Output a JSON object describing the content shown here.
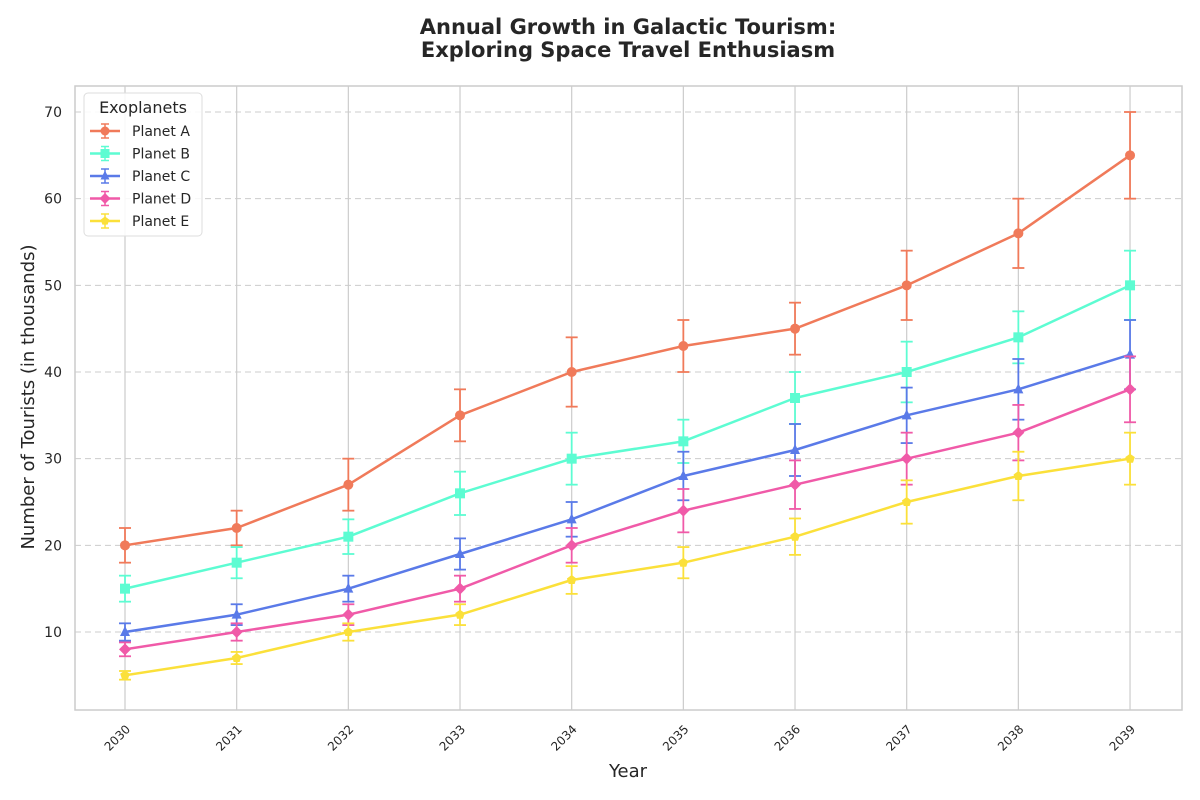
{
  "chart_data": {
    "type": "line",
    "title_lines": [
      "Annual Growth in Galactic Tourism:",
      "Exploring Space Travel Enthusiasm"
    ],
    "xlabel": "Year",
    "ylabel": "Number of Tourists (in thousands)",
    "x": [
      "2030",
      "2031",
      "2032",
      "2033",
      "2034",
      "2035",
      "2036",
      "2037",
      "2038",
      "2039"
    ],
    "ylim": [
      1,
      73
    ],
    "yticks": [
      "10",
      "20",
      "30",
      "40",
      "50",
      "60",
      "70"
    ],
    "grid": true,
    "legend": {
      "title": "Exoplanets",
      "position": "top-left"
    },
    "series": [
      {
        "name": "Planet A",
        "color": "#f07a5a",
        "marker": "circle",
        "values": [
          20,
          22,
          27,
          35,
          40,
          43,
          45,
          50,
          56,
          65
        ],
        "errors": [
          2,
          2,
          3,
          3,
          4,
          3,
          3,
          4,
          4,
          5
        ]
      },
      {
        "name": "Planet B",
        "color": "#5dfcd2",
        "marker": "square",
        "values": [
          15,
          18,
          21,
          26,
          30,
          32,
          37,
          40,
          44,
          50
        ],
        "errors": [
          1.5,
          1.8,
          2,
          2.5,
          3,
          2.5,
          3,
          3.5,
          3,
          4
        ]
      },
      {
        "name": "Planet C",
        "color": "#5a7ae8",
        "marker": "triangle",
        "values": [
          10,
          12,
          15,
          19,
          23,
          28,
          31,
          35,
          38,
          42
        ],
        "errors": [
          1,
          1.2,
          1.5,
          1.8,
          2,
          2.8,
          3,
          3.2,
          3.5,
          4
        ]
      },
      {
        "name": "Planet D",
        "color": "#f05aa8",
        "marker": "diamond",
        "values": [
          8,
          10,
          12,
          15,
          20,
          24,
          27,
          30,
          33,
          38
        ],
        "errors": [
          0.8,
          1,
          1.2,
          1.5,
          2,
          2.5,
          2.8,
          3,
          3.2,
          3.8
        ]
      },
      {
        "name": "Planet E",
        "color": "#fbe03a",
        "marker": "pentagon",
        "values": [
          5,
          7,
          10,
          12,
          16,
          18,
          21,
          25,
          28,
          30
        ],
        "errors": [
          0.5,
          0.7,
          1,
          1.2,
          1.6,
          1.8,
          2.1,
          2.5,
          2.8,
          3
        ]
      }
    ]
  }
}
